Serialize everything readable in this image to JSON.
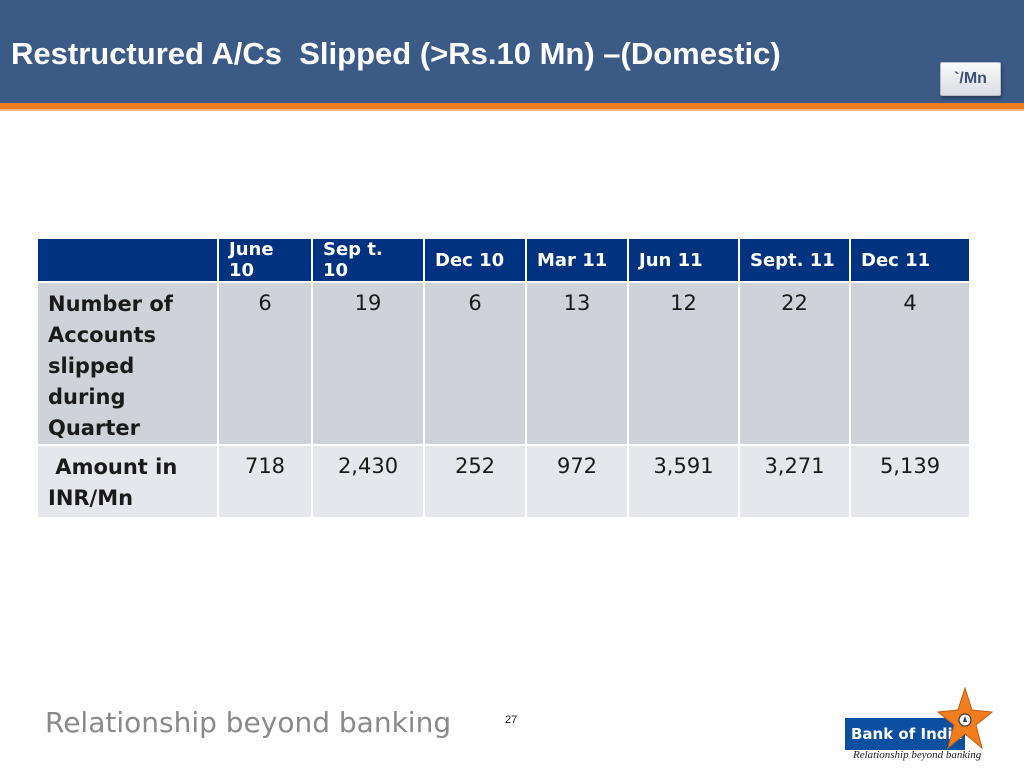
{
  "header": {
    "title": "Restructured A/Cs  Slipped (>Rs.10 Mn) –(Domestic)",
    "unit_label": "`/Mn"
  },
  "table": {
    "columns": [
      "June 10",
      "Sep t. 10",
      "Dec 10",
      "Mar 11",
      "Jun 11",
      "Sept. 11",
      "Dec 11"
    ],
    "rows": [
      {
        "label_lines": [
          "Number of",
          "Accounts",
          "slipped during",
          "Quarter"
        ],
        "values": [
          "6",
          "19",
          "6",
          "13",
          "12",
          "22",
          "4"
        ]
      },
      {
        "label_lines": [
          " Amount in",
          "INR/Mn"
        ],
        "values": [
          "718",
          "2,430",
          "252",
          "972",
          "3,591",
          "3,271",
          "5,139"
        ]
      }
    ]
  },
  "footer": {
    "tagline": "Relationship beyond banking",
    "page_number": "27",
    "logo_name": "Bank of India",
    "logo_tagline": "Relationship beyond banking"
  },
  "colors": {
    "header_bg": "#3b5a86",
    "accent_orange": "#f07d1e",
    "table_header_bg": "#00337f",
    "row1_bg": "#d0d2d9",
    "row2_bg": "#e6e7ec",
    "logo_blue": "#0b4fa1"
  }
}
